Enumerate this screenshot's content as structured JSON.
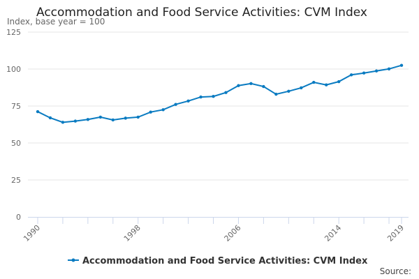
{
  "chart_data": {
    "type": "line",
    "title": "Accommodation and Food Service Activities: CVM Index",
    "ylabel": "Index, base year = 100",
    "xlabel": "",
    "ylim": [
      0,
      125
    ],
    "yticks": [
      0,
      25,
      50,
      75,
      100,
      125
    ],
    "xticklabels": [
      "1990",
      "1998",
      "2006",
      "2014",
      "2019"
    ],
    "grid": "horizontal",
    "legend": "bottom",
    "color": "#0a7bc1",
    "x": [
      1990,
      1991,
      1992,
      1993,
      1994,
      1995,
      1996,
      1997,
      1998,
      1999,
      2000,
      2001,
      2002,
      2003,
      2004,
      2005,
      2006,
      2007,
      2008,
      2009,
      2010,
      2011,
      2012,
      2013,
      2014,
      2015,
      2016,
      2017,
      2018,
      2019
    ],
    "series": [
      {
        "name": "Accommodation and Food Service Activities: CVM Index",
        "values": [
          71.2,
          67.0,
          64.0,
          64.8,
          65.9,
          67.5,
          65.6,
          66.8,
          67.5,
          70.9,
          72.5,
          76.1,
          78.4,
          81.1,
          81.5,
          84.1,
          88.8,
          90.2,
          88.2,
          83.0,
          85.0,
          87.3,
          91.0,
          89.3,
          91.5,
          96.1,
          97.3,
          98.7,
          100.1,
          102.5
        ]
      }
    ]
  },
  "source_label": "Source:"
}
